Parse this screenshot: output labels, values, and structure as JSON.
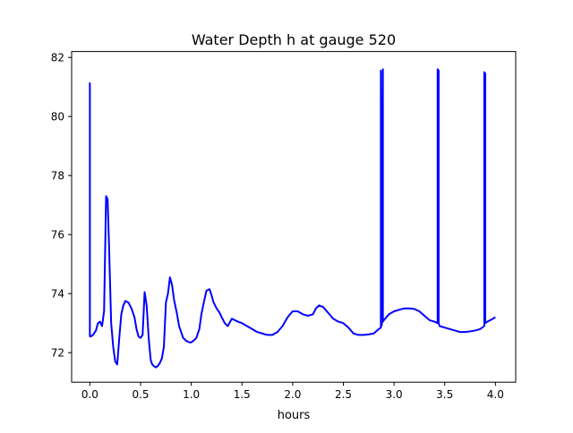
{
  "chart_data": {
    "type": "line",
    "title": "Water Depth h at gauge 520",
    "xlabel": "hours",
    "ylabel": "",
    "xlim": [
      -0.18,
      4.2
    ],
    "ylim": [
      71.0,
      82.2
    ],
    "xticks": [
      0.0,
      0.5,
      1.0,
      1.5,
      2.0,
      2.5,
      3.0,
      3.5,
      4.0
    ],
    "xtick_labels": [
      "0.0",
      "0.5",
      "1.0",
      "1.5",
      "2.0",
      "2.5",
      "3.0",
      "3.5",
      "4.0"
    ],
    "yticks": [
      72,
      74,
      76,
      78,
      80,
      82
    ],
    "ytick_labels": [
      "72",
      "74",
      "76",
      "78",
      "80",
      "82"
    ],
    "grid": false,
    "legend": "none",
    "series": [
      {
        "color": "#0000ff",
        "x": [
          0.0,
          0.0,
          0.005,
          0.01,
          0.03,
          0.06,
          0.08,
          0.1,
          0.12,
          0.14,
          0.16,
          0.175,
          0.19,
          0.21,
          0.23,
          0.25,
          0.27,
          0.29,
          0.31,
          0.33,
          0.35,
          0.38,
          0.41,
          0.44,
          0.46,
          0.48,
          0.5,
          0.52,
          0.54,
          0.56,
          0.58,
          0.6,
          0.615,
          0.63,
          0.65,
          0.67,
          0.69,
          0.71,
          0.73,
          0.75,
          0.77,
          0.79,
          0.81,
          0.83,
          0.86,
          0.88,
          0.9,
          0.92,
          0.95,
          0.98,
          1.0,
          1.02,
          1.05,
          1.08,
          1.1,
          1.13,
          1.15,
          1.18,
          1.2,
          1.22,
          1.25,
          1.28,
          1.3,
          1.33,
          1.36,
          1.4,
          1.43,
          1.46,
          1.5,
          1.55,
          1.6,
          1.65,
          1.7,
          1.75,
          1.8,
          1.85,
          1.9,
          1.95,
          2.0,
          2.05,
          2.1,
          2.15,
          2.2,
          2.23,
          2.26,
          2.3,
          2.35,
          2.4,
          2.45,
          2.5,
          2.55,
          2.6,
          2.65,
          2.7,
          2.75,
          2.8,
          2.85,
          2.87,
          2.87,
          2.875,
          2.88,
          2.89,
          2.89,
          2.9,
          2.95,
          3.0,
          3.05,
          3.1,
          3.15,
          3.2,
          3.25,
          3.3,
          3.35,
          3.4,
          3.43,
          3.43,
          3.44,
          3.44,
          3.45,
          3.5,
          3.55,
          3.6,
          3.65,
          3.7,
          3.75,
          3.8,
          3.85,
          3.89,
          3.89,
          3.9,
          3.9,
          3.92,
          3.95,
          4.0
        ],
        "y": [
          81.15,
          72.55,
          72.55,
          72.55,
          72.6,
          72.75,
          73.0,
          73.05,
          72.9,
          73.4,
          77.3,
          77.2,
          75.5,
          73.0,
          72.2,
          71.7,
          71.6,
          72.5,
          73.3,
          73.6,
          73.75,
          73.7,
          73.5,
          73.2,
          72.8,
          72.55,
          72.5,
          72.6,
          74.05,
          73.6,
          72.5,
          71.75,
          71.6,
          71.55,
          71.5,
          71.55,
          71.65,
          71.8,
          72.2,
          73.7,
          74.0,
          74.55,
          74.3,
          73.8,
          73.3,
          72.9,
          72.7,
          72.5,
          72.4,
          72.35,
          72.35,
          72.4,
          72.5,
          72.8,
          73.3,
          73.8,
          74.1,
          74.15,
          73.95,
          73.7,
          73.5,
          73.35,
          73.2,
          73.0,
          72.9,
          73.15,
          73.1,
          73.05,
          73.0,
          72.9,
          72.8,
          72.7,
          72.65,
          72.6,
          72.6,
          72.7,
          72.9,
          73.2,
          73.4,
          73.4,
          73.3,
          73.25,
          73.3,
          73.5,
          73.6,
          73.55,
          73.35,
          73.15,
          73.05,
          73.0,
          72.85,
          72.65,
          72.6,
          72.6,
          72.62,
          72.65,
          72.8,
          72.85,
          81.55,
          72.9,
          72.95,
          81.6,
          73.05,
          73.1,
          73.3,
          73.4,
          73.45,
          73.5,
          73.5,
          73.48,
          73.4,
          73.25,
          73.1,
          73.05,
          73.0,
          81.6,
          81.55,
          73.0,
          72.9,
          72.85,
          72.8,
          72.75,
          72.7,
          72.7,
          72.72,
          72.75,
          72.8,
          72.9,
          81.5,
          81.45,
          73.0,
          73.05,
          73.1,
          73.2
        ]
      }
    ]
  }
}
